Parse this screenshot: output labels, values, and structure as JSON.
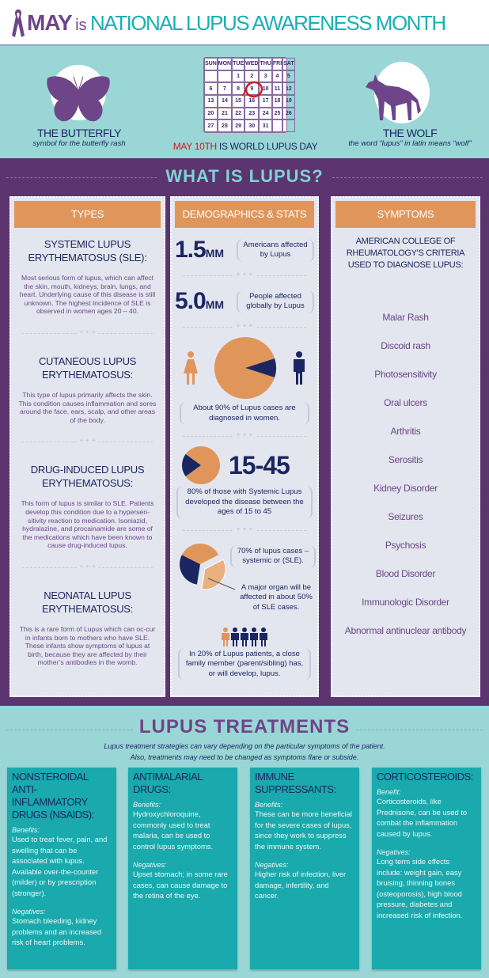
{
  "header": {
    "may": "MAY",
    "is": "is",
    "rest": "NATIONAL LUPUS AWARENESS MONTH",
    "icon": "ribbon-icon"
  },
  "intro": {
    "butterfly": {
      "title": "THE BUTTERFLY",
      "caption": "symbol for the butterfly rash"
    },
    "wolf": {
      "title": "THE WOLF",
      "caption": "the word “lupus” in latin means “wolf”"
    },
    "calendar": {
      "days": [
        "SUN",
        "MON",
        "TUE",
        "WED",
        "THU",
        "FRI",
        "SAT"
      ],
      "weeks": [
        [
          "",
          "",
          "1",
          "2",
          "3",
          "4",
          "5"
        ],
        [
          "6",
          "7",
          "8",
          "9",
          "10",
          "11",
          "12"
        ],
        [
          "13",
          "14",
          "15",
          "16",
          "17",
          "18",
          "19"
        ],
        [
          "20",
          "21",
          "22",
          "23",
          "24",
          "25",
          "26"
        ],
        [
          "27",
          "28",
          "29",
          "30",
          "31",
          "",
          ""
        ]
      ],
      "circled": "10"
    },
    "day_red": "MAY 10TH",
    "day_rest": " IS WORLD LUPUS DAY"
  },
  "what": {
    "title": "WHAT IS LUPUS?"
  },
  "types": {
    "header": "TYPES",
    "items": [
      {
        "name": [
          "SYSTEMIC LUPUS",
          "ERYTHEMATOSUS (SLE):"
        ],
        "body": "Most serious form of lupus, which can affect the skin, mouth, kidneys, brain, lungs, and heart. Underlying cause of this disease is still unknown.  The highest Incidence of SLE is observed in women ages 20 – 40."
      },
      {
        "name": [
          "CUTANEOUS LUPUS",
          "ERYTHEMATOSUS:"
        ],
        "body": "This type of lupus primarily affects the skin. This condition causes inflammation and sores around the face, ears, scalp, and other areas of the body."
      },
      {
        "name": [
          "DRUG-INDUCED LUPUS",
          "ERYTHEMATOSUS:"
        ],
        "body": "This form of lupus is similar to SLE. Patients develop this condition due to a hypersen-sitivity reaction to medication. Isoniazid, hydralazine, and procainamide are some of the medications which have been known to cause drug-induced lupus."
      },
      {
        "name": [
          "NEONATAL LUPUS",
          "ERYTHEMATOSUS:"
        ],
        "body": "This is a rare form of Lupus which can oc-cur in infants born to mothers who have SLE. These infants show symptoms of lupus at birth, because they are affected by their mother’s antibodies in the womb."
      }
    ]
  },
  "demo": {
    "header": "DEMOGRAPHICS & STATS",
    "stat1": {
      "num": "1.5",
      "unit": "MM",
      "text": "Americans affected by Lupus"
    },
    "stat2": {
      "num": "5.0",
      "unit": "MM",
      "text": "People affected globally by Lupus"
    },
    "women": {
      "percent": 90,
      "text": "About 90% of Lupus cases are diagnosed in women."
    },
    "ages": {
      "percent": 80,
      "num": "15-45",
      "text": "80% of those with Systemic Lupus developed the disease between the ages of 15 to 45"
    },
    "sle": {
      "percent": 70,
      "organ_percent": 50,
      "text1": "70% of lupus cases – systemic or (SLE).",
      "text2": "A major organ will be affected in about 50% of SLE cases."
    },
    "family": {
      "percent": 20,
      "text": "In 20% of Lupus patients, a close family member (parent/sibling) has, or will develop, lupus."
    }
  },
  "symptoms": {
    "header": "SYMPTOMS",
    "intro": [
      "AMERICAN COLLEGE OF",
      "RHEUMATOLOGY'S CRITERIA",
      "USED TO DIAGNOSE LUPUS:"
    ],
    "items": [
      "Malar Rash",
      "Discoid rash",
      "Photosensitivity",
      "Oral ulcers",
      "Arthritis",
      "Serositis",
      "Kidney Disorder",
      "Seizures",
      "Psychosis",
      "Blood Disorder",
      "Immunologic Disorder",
      "Abnormal antinuclear antibody"
    ]
  },
  "treatments": {
    "title": "LUPUS TREATMENTS",
    "subtitle": [
      "Lupus treatment strategies can vary depending on the particular symptoms of the patient.",
      "Also, treatments may need to be changed as symptoms flare or subside."
    ],
    "cards": [
      {
        "name": [
          "NONSTEROIDAL ANTI-",
          "INFLAMMATORY",
          "DRUGS (NSAIDS):"
        ],
        "benefit_label": "Benefits:",
        "benefit": "Used to treat fever, pain, and swelling that can be associated with lupus. Available over-the-counter (milder) or by prescription (stronger).",
        "neg_label": "Negatives:",
        "neg": "Stomach bleeding, kidney problems and an increased risk of heart problems."
      },
      {
        "name": [
          "ANTIMALARIAL",
          "DRUGS:"
        ],
        "benefit_label": "Benefits:",
        "benefit": "Hydroxychloroquine, commonly used to treat malaria, can be used to control lupus symptoms.",
        "neg_label": "Negatives:",
        "neg": "Upset stomach; in some rare cases, can cause damage to the retina of the eye."
      },
      {
        "name": [
          "IMMUNE",
          "SUPPRESSANTS:"
        ],
        "benefit_label": "Benefits:",
        "benefit": "These can be more beneficial for the severe cases of lupus, since they work to suppress the immune system.",
        "neg_label": "Negatives:",
        "neg": "Higher risk of infection, liver damage, infertility, and cancer."
      },
      {
        "name": [
          "CORTICOSTEROIDS:"
        ],
        "benefit_label": "Benefit:",
        "benefit": "Corticosteroids, like Prednisone, can be used to combat the inflammation caused by lupus.",
        "neg_label": "Negatives:",
        "neg": "Long term side effects include: weight gain, easy bruising, thinning bones (osteoporosis), high blood pressure, diabetes and increased risk of infection."
      }
    ]
  },
  "colors": {
    "purple": "#5b3470",
    "teal": "#1aa9ad",
    "light_teal": "#9ad6d6",
    "orange": "#e0965a",
    "navy": "#1b2661"
  }
}
